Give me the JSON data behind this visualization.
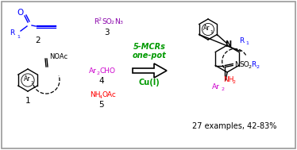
{
  "bg_color": "#ffffff",
  "border_color": "#999999",
  "arrow_label_line1": "5-MCRs",
  "arrow_label_line2": "one-pot",
  "arrow_label_line3": "Cu(I)",
  "product_label": "27 examples, 42-83%",
  "colors": {
    "blue": "#0000ff",
    "purple": "#8800aa",
    "red": "#ff0000",
    "magenta": "#cc00cc",
    "black": "#000000",
    "green": "#009900",
    "gray": "#888888"
  }
}
